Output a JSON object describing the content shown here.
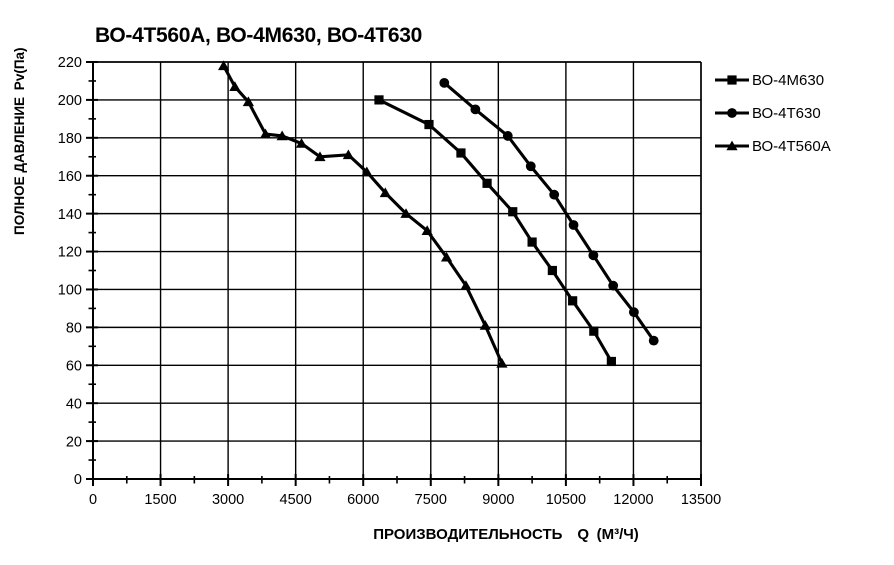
{
  "title": {
    "text": "ВО-4Т560А, ВО-4М630, ВО-4Т630",
    "color": "#0e72bb"
  },
  "chart_data": {
    "type": "line",
    "title": "ВО-4Т560А, ВО-4М630, ВО-4Т630",
    "xlabel": "ПРОИЗВОДИТЕЛЬНОСТЬ Q (М³/Ч)",
    "ylabel": "ПОЛНОЕ ДАВЛЕНИЕ Pv(Па)",
    "xlim": [
      0,
      13500
    ],
    "ylim": [
      0,
      220
    ],
    "x_ticks": [
      0,
      1500,
      3000,
      4500,
      6000,
      7500,
      9000,
      10500,
      12000,
      13500
    ],
    "y_ticks": [
      0,
      20,
      40,
      60,
      80,
      100,
      120,
      140,
      160,
      180,
      200,
      220
    ],
    "x_minor_step": 750,
    "y_minor_step": 10,
    "grid": true,
    "grid_color": "#000000",
    "line_color": "#000000",
    "legend_position": "right",
    "legend": [
      "ВО-4М630",
      "ВО-4Т630",
      "ВО-4Т560А"
    ],
    "series": [
      {
        "name": "ВО-4М630",
        "marker": "square",
        "points": [
          [
            6350,
            200
          ],
          [
            7460,
            187
          ],
          [
            8170,
            172
          ],
          [
            8750,
            156
          ],
          [
            9320,
            141
          ],
          [
            9750,
            125
          ],
          [
            10200,
            110
          ],
          [
            10650,
            94
          ],
          [
            11120,
            78
          ],
          [
            11510,
            62
          ]
        ]
      },
      {
        "name": "ВО-4Т630",
        "marker": "circle",
        "points": [
          [
            7800,
            209
          ],
          [
            8490,
            195
          ],
          [
            9210,
            181
          ],
          [
            9720,
            165
          ],
          [
            10240,
            150
          ],
          [
            10670,
            134
          ],
          [
            11110,
            118
          ],
          [
            11550,
            102
          ],
          [
            12010,
            88
          ],
          [
            12450,
            73
          ]
        ]
      },
      {
        "name": "ВО-4Т560А",
        "marker": "triangle",
        "points": [
          [
            2900,
            218
          ],
          [
            3150,
            207
          ],
          [
            3450,
            199
          ],
          [
            3830,
            182
          ],
          [
            4200,
            181
          ],
          [
            4630,
            177
          ],
          [
            5040,
            170
          ],
          [
            5670,
            171
          ],
          [
            6080,
            162
          ],
          [
            6490,
            151
          ],
          [
            6950,
            140
          ],
          [
            7420,
            131
          ],
          [
            7850,
            117
          ],
          [
            8280,
            102
          ],
          [
            8710,
            81
          ],
          [
            9080,
            61
          ]
        ]
      }
    ]
  }
}
